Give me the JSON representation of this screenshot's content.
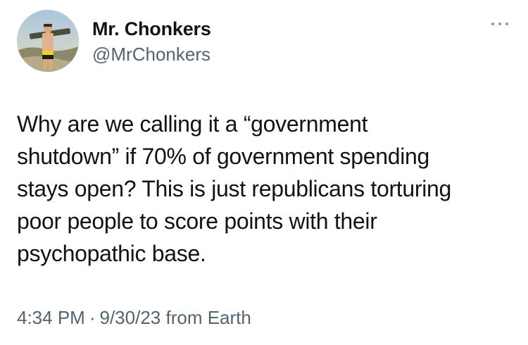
{
  "author": {
    "display_name": "Mr. Chonkers",
    "handle": "@MrChonkers",
    "avatar_icon": "profile-photo"
  },
  "menu": {
    "icon": "more-options-icon"
  },
  "tweet": {
    "text": "Why are we calling it a “government\nshutdown” if 70% of government spending\nstays open? This is just republicans torturing\npoor people to score points with their\npsychopathic base."
  },
  "meta": {
    "time": "4:34 PM",
    "separator": "·",
    "date": "9/30/23",
    "source": "from Earth"
  },
  "colors": {
    "text_primary": "#0f1419",
    "text_secondary": "#536471",
    "background": "#ffffff"
  }
}
